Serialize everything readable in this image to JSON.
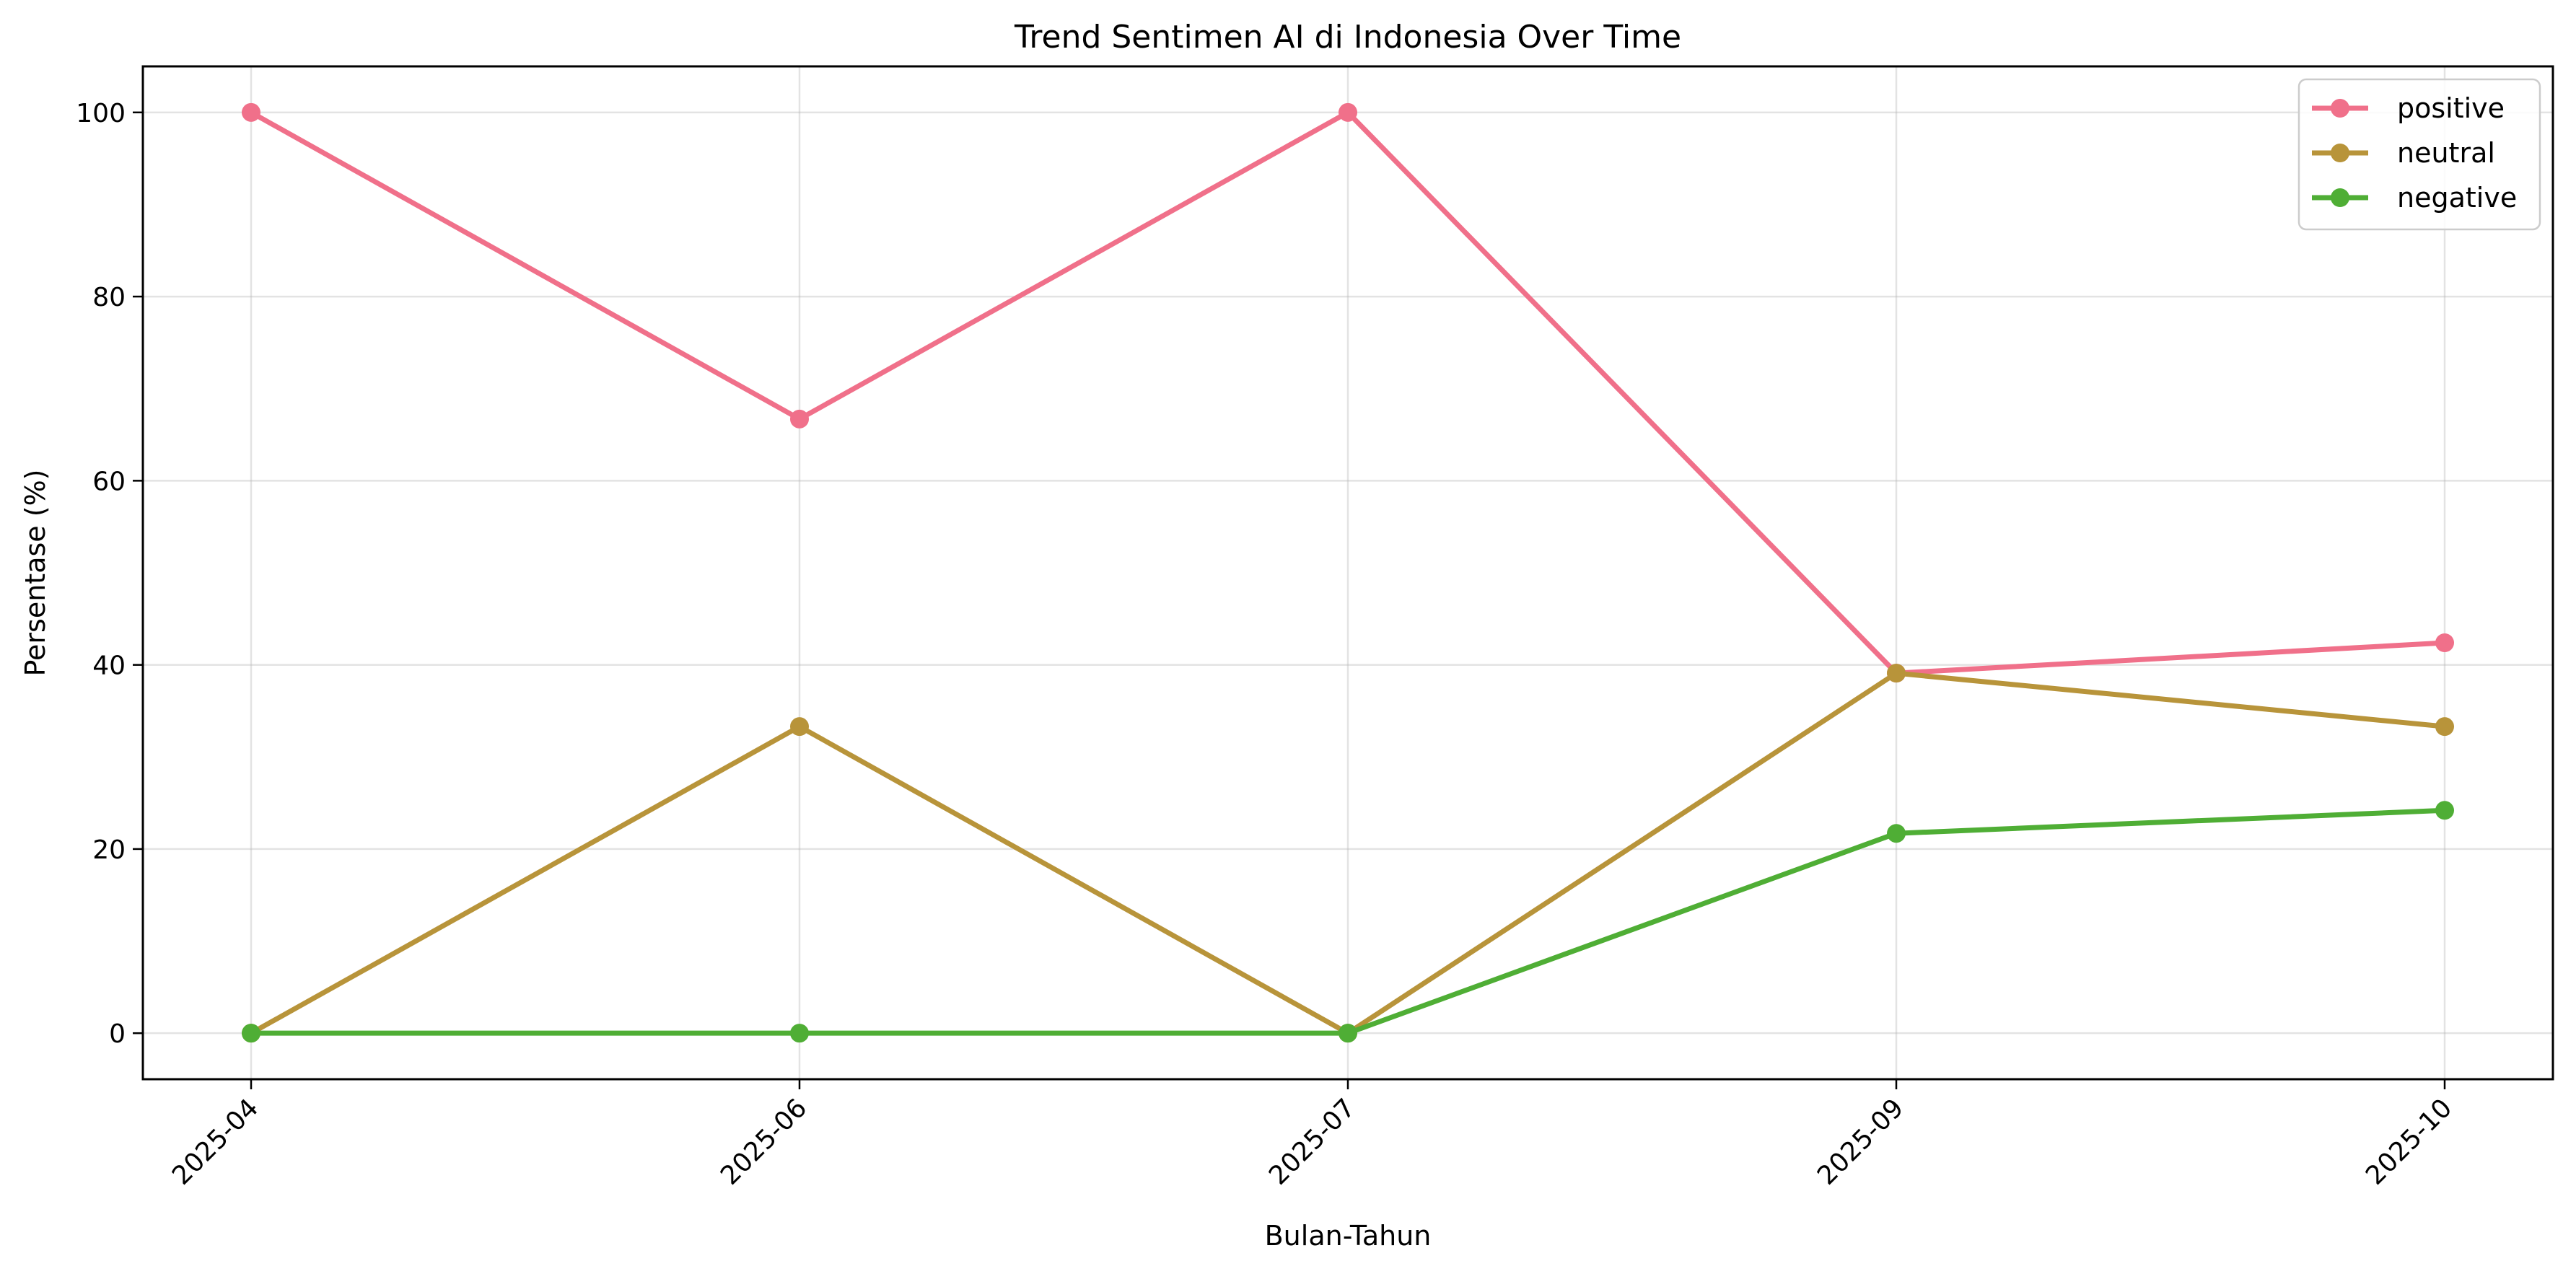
{
  "chart_data": {
    "type": "line",
    "title": "Trend Sentimen AI di Indonesia Over Time",
    "xlabel": "Bulan-Tahun",
    "ylabel": "Persentase (%)",
    "categories": [
      "2025-04",
      "2025-06",
      "2025-07",
      "2025-09",
      "2025-10"
    ],
    "ylim": [
      -5,
      105
    ],
    "yticks": [
      0,
      20,
      40,
      60,
      80,
      100
    ],
    "grid": true,
    "legend_position": "top-right",
    "series": [
      {
        "name": "positive",
        "color": "#f0708a",
        "values": [
          100,
          66.7,
          100,
          39.1,
          42.4
        ]
      },
      {
        "name": "neutral",
        "color": "#b8943a",
        "values": [
          0,
          33.3,
          0,
          39.1,
          33.3
        ]
      },
      {
        "name": "negative",
        "color": "#4fae35",
        "values": [
          0,
          0,
          0,
          21.7,
          24.2
        ]
      }
    ]
  }
}
